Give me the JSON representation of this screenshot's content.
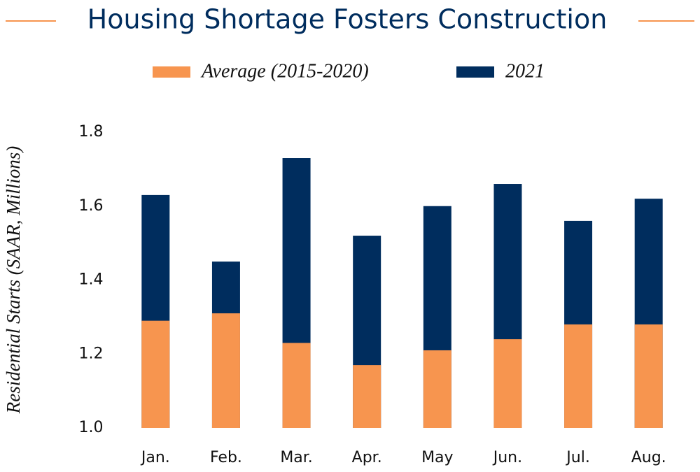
{
  "chart_data": {
    "type": "bar",
    "title": "Housing Shortage Fosters Construction",
    "y_label": "Residential Starts (SAAR, Millions)",
    "categories": [
      "Jan.",
      "Feb.",
      "Mar.",
      "Apr.",
      "May",
      "Jun.",
      "Jul.",
      "Aug."
    ],
    "series": [
      {
        "name": "Average (2015-2020)",
        "color": "#f7954f",
        "values": [
          1.29,
          1.31,
          1.23,
          1.17,
          1.21,
          1.24,
          1.28,
          1.28
        ]
      },
      {
        "name": "2021",
        "color": "#002d5e",
        "values": [
          1.63,
          1.45,
          1.73,
          1.52,
          1.6,
          1.66,
          1.56,
          1.62
        ]
      }
    ],
    "ylim": [
      1.0,
      1.8
    ],
    "yticks": [
      {
        "value": 1.0,
        "label": "1.0"
      },
      1.2,
      1.4,
      1.6,
      1.8
    ],
    "grid": false
  }
}
